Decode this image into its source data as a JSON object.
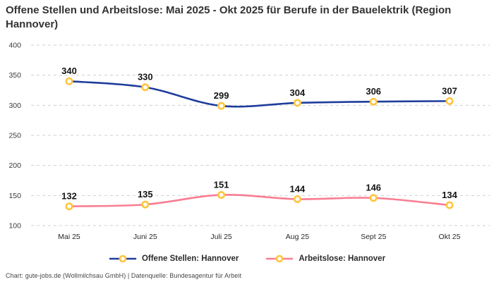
{
  "title": "Offene Stellen und Arbeitslose: Mai 2025 - Okt 2025 für Berufe in der Bauelektrik (Region Hannover)",
  "footer": "Chart: gute-jobs.de (Wollmilchsau GmbH) | Datenquelle: Bundesagentur für Arbeit",
  "chart_data": {
    "type": "line",
    "categories": [
      "Mai 25",
      "Juni 25",
      "Juli 25",
      "Aug 25",
      "Sept 25",
      "Okt 25"
    ],
    "series": [
      {
        "name": "Offene Stellen: Hannover",
        "values": [
          340,
          330,
          299,
          304,
          306,
          307
        ],
        "color": "#1f3d9c"
      },
      {
        "name": "Arbeitslose: Hannover",
        "values": [
          132,
          135,
          151,
          144,
          146,
          134
        ],
        "color": "#f97d92"
      }
    ],
    "marker_color": "#ffc53d",
    "marker_fill": "#ffffff",
    "grid_color": "#cfcfcf",
    "ylim": [
      100,
      400
    ],
    "yticks": [
      100,
      150,
      200,
      250,
      300,
      350,
      400
    ],
    "grid": "dashed",
    "legend_position": "bottom",
    "value_labels": true
  }
}
